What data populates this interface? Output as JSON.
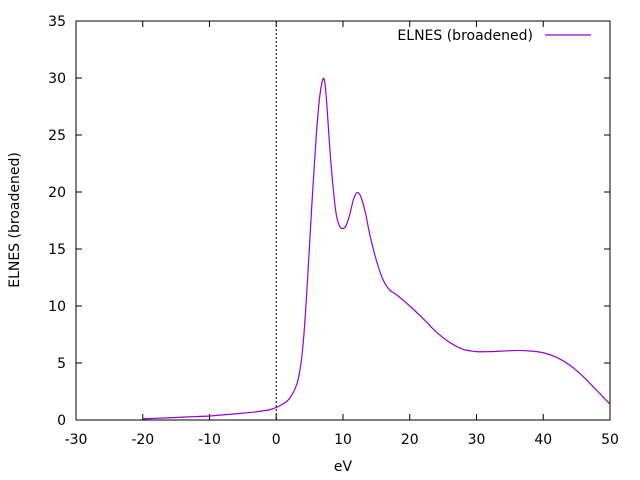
{
  "chart_data": {
    "type": "line",
    "title": "",
    "xlabel": "eV",
    "ylabel": "ELNES (broadened)",
    "xlim": [
      -30,
      50
    ],
    "ylim": [
      0,
      35
    ],
    "xticks": [
      -30,
      -20,
      -10,
      0,
      10,
      20,
      30,
      40,
      50
    ],
    "yticks": [
      0,
      5,
      10,
      15,
      20,
      25,
      30,
      35
    ],
    "grid": false,
    "legend_position": "top-right",
    "reference_line_x": 0,
    "series": [
      {
        "name": "ELNES (broadened)",
        "color": "#9400d3",
        "x": [
          -20,
          -18,
          -16,
          -14,
          -12,
          -10,
          -8,
          -6,
          -4,
          -2,
          -1,
          0,
          1,
          2,
          3,
          3.5,
          4,
          4.5,
          5,
          5.5,
          6,
          6.5,
          7,
          7.3,
          7.6,
          8,
          8.5,
          9,
          9.5,
          10,
          10.5,
          11,
          11.5,
          12,
          12.5,
          13,
          13.5,
          14,
          15,
          16,
          17,
          18,
          20,
          22,
          24,
          26,
          28,
          30,
          32,
          34,
          36,
          38,
          40,
          42,
          44,
          46,
          48,
          50
        ],
        "y": [
          0.1,
          0.15,
          0.2,
          0.25,
          0.3,
          0.35,
          0.45,
          0.55,
          0.65,
          0.8,
          0.9,
          1.1,
          1.4,
          1.9,
          3.0,
          4.2,
          6.5,
          10.5,
          15.5,
          20.5,
          25.0,
          28.3,
          29.9,
          29.5,
          27.5,
          24.0,
          20.5,
          18.0,
          17.0,
          16.8,
          17.1,
          18.0,
          19.2,
          19.9,
          19.8,
          19.0,
          17.8,
          16.3,
          14.0,
          12.3,
          11.4,
          11.0,
          10.0,
          8.9,
          7.7,
          6.8,
          6.2,
          6.0,
          6.0,
          6.05,
          6.1,
          6.05,
          5.9,
          5.5,
          4.8,
          3.8,
          2.6,
          1.4
        ]
      }
    ]
  }
}
